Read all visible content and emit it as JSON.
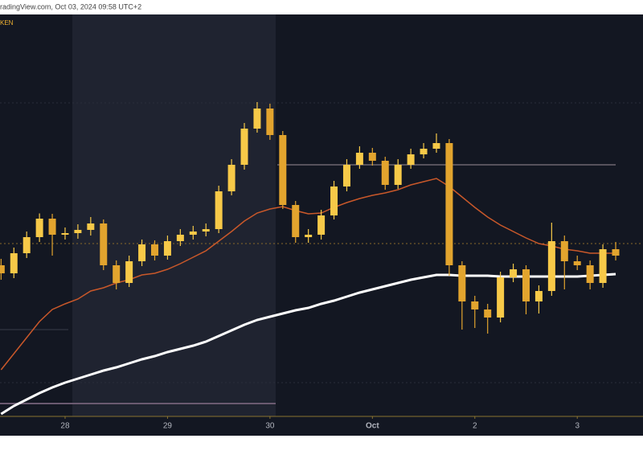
{
  "chart_data": {
    "type": "candlestick",
    "title": "radingView.com, Oct 03, 2024 09:58 UTC+2",
    "subtitle": "KEN",
    "x": [
      -15,
      -12,
      -9,
      -6,
      -3,
      0,
      3,
      6,
      9,
      12,
      15,
      18,
      21,
      24,
      27,
      30,
      33,
      36,
      39,
      42,
      45,
      48,
      51,
      54,
      57,
      60,
      63,
      66,
      69,
      72,
      75,
      78,
      81,
      84,
      87,
      90,
      93,
      96,
      99,
      102,
      105,
      108,
      111,
      114,
      117,
      120,
      123,
      126,
      129
    ],
    "open": [
      37.6,
      35.6,
      40.6,
      44.6,
      49.2,
      45.2,
      45.6,
      46.4,
      48,
      37.6,
      33.2,
      38.6,
      42.8,
      40,
      43.6,
      45.2,
      46,
      46.6,
      56,
      62.6,
      71.6,
      76.6,
      70,
      52.6,
      44.6,
      45.2,
      50,
      57.2,
      62.6,
      65.6,
      63.6,
      57.6,
      62.6,
      65.2,
      66.6,
      68,
      37.6,
      28.6,
      26.6,
      24.6,
      34.6,
      36.6,
      28.6,
      31.2,
      43.6,
      38.6,
      37.6,
      33.2,
      41.6
    ],
    "high": [
      39.2,
      42,
      46,
      50.5,
      50.4,
      47,
      47.8,
      49.6,
      49,
      38.8,
      40,
      44,
      43.8,
      45,
      46.6,
      47.4,
      48,
      57.4,
      64,
      73,
      78.2,
      77.8,
      71,
      53.6,
      46.6,
      51.4,
      58.6,
      64,
      67.2,
      66.8,
      64.6,
      64,
      66.6,
      68,
      70.4,
      69,
      38.6,
      30,
      28,
      36,
      38,
      37.6,
      32.6,
      48.2,
      45,
      40,
      38.8,
      42.8,
      43.4
    ],
    "low": [
      34,
      34.4,
      39.4,
      43.4,
      40,
      44,
      44.2,
      45,
      36.4,
      31.6,
      32.2,
      37.4,
      38.8,
      39,
      42.4,
      44,
      44.8,
      45.6,
      55,
      61.4,
      70.6,
      68.8,
      51.6,
      43.2,
      43.2,
      44,
      49,
      56,
      61.6,
      62.4,
      56.4,
      56.6,
      61.6,
      64.2,
      65.6,
      35,
      21.6,
      22,
      20.6,
      23.4,
      33.4,
      25.4,
      25.6,
      30,
      31.6,
      36.4,
      31.6,
      32,
      38.8
    ],
    "close": [
      35.6,
      40.6,
      44.6,
      49.2,
      45.2,
      45.6,
      46.4,
      48,
      37.6,
      33.2,
      38.6,
      42.8,
      40,
      43.6,
      45.2,
      46,
      46.6,
      56,
      62.6,
      71.6,
      76.6,
      70,
      52.6,
      44.6,
      45.2,
      50,
      57.2,
      62.6,
      65.6,
      63.6,
      57.6,
      62.6,
      65.2,
      66.6,
      68,
      37.6,
      28.6,
      26.6,
      24.6,
      34.6,
      36.6,
      28.6,
      31.2,
      43.6,
      38.6,
      37.6,
      33.2,
      41.6,
      40
    ],
    "up_color": "#f7c948",
    "down_color": "#e2a42e",
    "moving_averages": [
      {
        "color": "#c9582a",
        "values": [
          11.6,
          15.6,
          19.6,
          23.6,
          26.6,
          28,
          29.2,
          31.2,
          32,
          33.2,
          34,
          35.2,
          35.6,
          36.6,
          38,
          39.6,
          41.2,
          43.6,
          46,
          48.6,
          50.6,
          51.6,
          52.2,
          51.2,
          50.4,
          50.6,
          52,
          53.2,
          54.2,
          55,
          55.6,
          56.4,
          57.6,
          58.4,
          59.2,
          57.2,
          54.6,
          52,
          49.6,
          47.6,
          46,
          44.4,
          43,
          42.4,
          41.6,
          41.2,
          40.6,
          40.6,
          40.6
        ]
      },
      {
        "color": "#ffffff",
        "values": [
          0.6,
          2.6,
          4.2,
          5.8,
          7.2,
          8.4,
          9.4,
          10.4,
          11.4,
          12.2,
          13.2,
          14.2,
          15,
          16,
          16.8,
          17.6,
          18.6,
          20,
          21.4,
          22.8,
          24,
          24.8,
          25.6,
          26.4,
          27,
          28,
          28.8,
          29.8,
          30.8,
          31.6,
          32.4,
          33.2,
          34,
          34.6,
          35.2,
          35.2,
          35,
          35,
          35,
          34.8,
          34.8,
          34.8,
          34.8,
          34.8,
          34.8,
          34.8,
          35,
          35.2,
          35.4
        ]
      }
    ],
    "xlim": [
      -15.25,
      135.4
    ],
    "ylim": [
      0,
      100
    ],
    "xticks": [
      {
        "value": 0,
        "label": "28"
      },
      {
        "value": 24,
        "label": "29"
      },
      {
        "value": 48,
        "label": "30"
      },
      {
        "value": 72,
        "label": "Oct"
      },
      {
        "value": 96,
        "label": "2"
      },
      {
        "value": 120,
        "label": "3"
      }
    ]
  }
}
